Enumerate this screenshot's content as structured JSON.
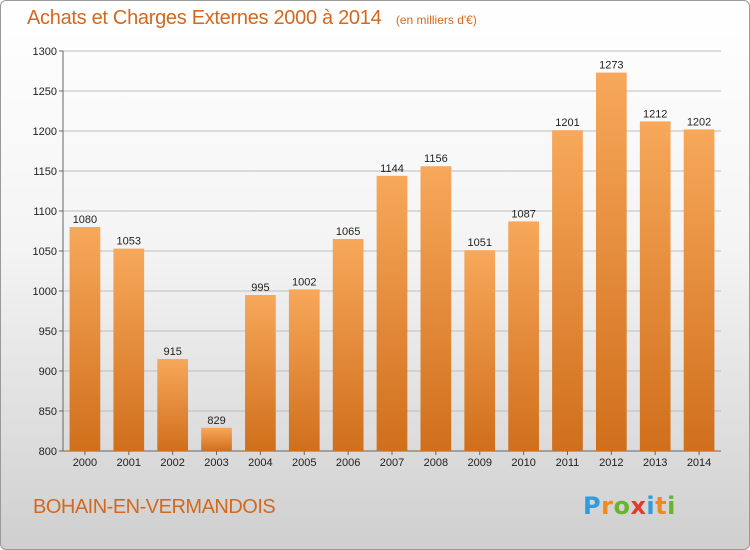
{
  "title": "Achats et Charges Externes 2000 à 2014",
  "unit": "(en milliers d'€)",
  "city": "BOHAIN-EN-VERMANDOIS",
  "logo": {
    "text": "Proxiti",
    "letters": [
      {
        "char": "P",
        "color": "#2e9de0"
      },
      {
        "char": "r",
        "color": "#f08a1c"
      },
      {
        "char": "o",
        "color": "#6ab42d"
      },
      {
        "char": "x",
        "color": "#e23b2e"
      },
      {
        "char": "i",
        "color": "#2e9de0"
      },
      {
        "char": "t",
        "color": "#f08a1c"
      },
      {
        "char": "i",
        "color": "#6ab42d"
      }
    ]
  },
  "colors": {
    "bar_light": "#f7a85a",
    "bar_dark": "#d06f1c",
    "text_accent": "#d2691e",
    "grid": "#bdbdbd"
  },
  "chart_data": {
    "type": "bar",
    "categories": [
      "2000",
      "2001",
      "2002",
      "2003",
      "2004",
      "2005",
      "2006",
      "2007",
      "2008",
      "2009",
      "2010",
      "2011",
      "2012",
      "2013",
      "2014"
    ],
    "values": [
      1080,
      1053,
      915,
      829,
      995,
      1002,
      1065,
      1144,
      1156,
      1051,
      1087,
      1201,
      1273,
      1212,
      1202
    ],
    "ylim": [
      800,
      1300
    ],
    "yticks": [
      800,
      850,
      900,
      950,
      1000,
      1050,
      1100,
      1150,
      1200,
      1250,
      1300
    ],
    "grid": true,
    "data_labels": true
  }
}
